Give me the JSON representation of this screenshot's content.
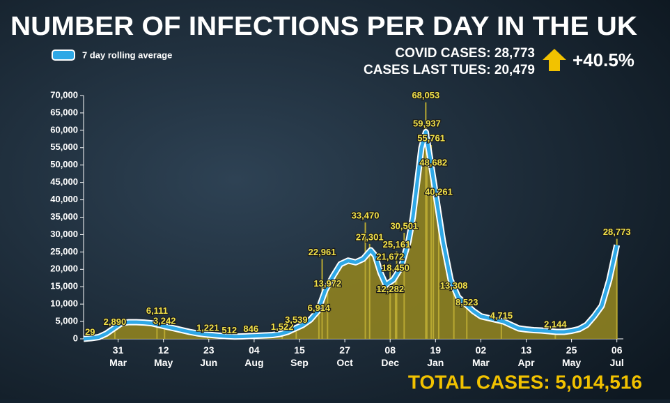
{
  "chart_data": {
    "type": "area-line",
    "title": "NUMBER OF INFECTIONS PER DAY IN THE UK",
    "stats": {
      "covid_cases": "COVID CASES: 28,773",
      "last_tues": "CASES LAST TUES: 20,479",
      "change": "+40.5%",
      "total": "TOTAL CASES: 5,014,516"
    },
    "series": [
      {
        "name": "7 day rolling average",
        "color": "#2fa8e6",
        "fill": "#8f8220",
        "x": [
          0,
          7,
          14,
          21,
          28,
          35,
          42,
          49,
          56,
          63,
          70,
          77,
          84,
          91,
          98,
          105,
          112,
          119,
          126,
          133,
          140,
          147,
          154,
          161,
          168,
          175,
          182,
          189,
          196,
          203,
          210,
          217,
          224,
          231,
          238,
          245,
          252,
          259,
          266,
          270,
          275,
          280,
          287,
          294,
          301,
          305,
          309,
          313,
          317,
          321,
          326,
          333,
          340,
          347,
          354,
          361,
          368,
          375,
          382,
          389,
          396,
          403,
          410,
          417,
          424,
          431,
          438,
          445,
          452,
          459,
          466,
          473,
          480,
          487,
          494
        ],
        "values": [
          0,
          200,
          500,
          1500,
          3000,
          4500,
          4800,
          4800,
          4700,
          4500,
          4000,
          3500,
          3000,
          2500,
          2000,
          1600,
          1300,
          1100,
          900,
          750,
          650,
          700,
          800,
          900,
          1000,
          1100,
          1400,
          2000,
          3000,
          4000,
          5500,
          8000,
          14000,
          18000,
          21500,
          22500,
          22000,
          23000,
          25500,
          24000,
          19000,
          15500,
          17000,
          20500,
          28000,
          35000,
          45000,
          55000,
          59500,
          52000,
          42000,
          28000,
          17000,
          12000,
          10000,
          8000,
          6500,
          6000,
          5500,
          5000,
          4000,
          3000,
          2700,
          2500,
          2400,
          2200,
          2000,
          2000,
          2300,
          2800,
          4000,
          6500,
          9500,
          17000,
          27000
        ]
      }
    ],
    "annotations": [
      {
        "x": 6,
        "value": 29,
        "label": "29"
      },
      {
        "x": 29,
        "value": 2890,
        "label": "2,890"
      },
      {
        "x": 68,
        "value": 6111,
        "label": "6,111"
      },
      {
        "x": 75,
        "value": 3242,
        "label": "3,242"
      },
      {
        "x": 115,
        "value": 1221,
        "label": "1,221"
      },
      {
        "x": 135,
        "value": 512,
        "label": "512"
      },
      {
        "x": 155,
        "value": 846,
        "label": "846"
      },
      {
        "x": 184,
        "value": 1522,
        "label": "1,522"
      },
      {
        "x": 197,
        "value": 3539,
        "label": "3,539"
      },
      {
        "x": 218,
        "value": 6914,
        "label": "6,914"
      },
      {
        "x": 226,
        "value": 13972,
        "label": "13,972"
      },
      {
        "x": 221,
        "value": 22961,
        "label": "22,961"
      },
      {
        "x": 265,
        "value": 27301,
        "label": "27,301"
      },
      {
        "x": 261,
        "value": 33470,
        "label": "33,470"
      },
      {
        "x": 284,
        "value": 12282,
        "label": "12,282"
      },
      {
        "x": 284,
        "value": 21672,
        "label": "21,672"
      },
      {
        "x": 289,
        "value": 18450,
        "label": "18,450"
      },
      {
        "x": 290,
        "value": 25161,
        "label": "25,161"
      },
      {
        "x": 297,
        "value": 30501,
        "label": "30,501"
      },
      {
        "x": 317,
        "value": 68053,
        "label": "68,053"
      },
      {
        "x": 318,
        "value": 59937,
        "label": "59,937"
      },
      {
        "x": 322,
        "value": 55761,
        "label": "55,761"
      },
      {
        "x": 324,
        "value": 48682,
        "label": "48,682"
      },
      {
        "x": 329,
        "value": 40261,
        "label": "40,261"
      },
      {
        "x": 343,
        "value": 13308,
        "label": "13,308"
      },
      {
        "x": 355,
        "value": 8523,
        "label": "8,523"
      },
      {
        "x": 387,
        "value": 4715,
        "label": "4,715"
      },
      {
        "x": 437,
        "value": 2144,
        "label": "2,144"
      },
      {
        "x": 494,
        "value": 28773,
        "label": "28,773"
      }
    ],
    "xlim": [
      0,
      500
    ],
    "xticks": [
      {
        "value": 32,
        "label": "31 Mar"
      },
      {
        "value": 74,
        "label": "12 May"
      },
      {
        "value": 116,
        "label": "23 Jun"
      },
      {
        "value": 158,
        "label": "04 Aug"
      },
      {
        "value": 200,
        "label": "15 Sep"
      },
      {
        "value": 242,
        "label": "27 Oct"
      },
      {
        "value": 284,
        "label": "08 Dec"
      },
      {
        "value": 326,
        "label": "19 Jan"
      },
      {
        "value": 368,
        "label": "02 Mar"
      },
      {
        "value": 410,
        "label": "13 Apr"
      },
      {
        "value": 452,
        "label": "25 May"
      },
      {
        "value": 494,
        "label": "06 Jul"
      }
    ],
    "ylim": [
      0,
      70000
    ],
    "yticks": [
      0,
      {
        "value": 5000,
        "label": "5,000"
      },
      {
        "value": 10000,
        "label": "10,000"
      },
      {
        "value": 15000,
        "label": "15,000"
      },
      {
        "value": 20000,
        "label": "20,000"
      },
      {
        "value": 25000,
        "label": "25,000"
      },
      {
        "value": 30000,
        "label": "30,000"
      },
      {
        "value": 35000,
        "label": "35,000"
      },
      {
        "value": 40000,
        "label": "40,000"
      },
      {
        "value": 45000,
        "label": "45,000"
      },
      {
        "value": 50000,
        "label": "50,000"
      },
      {
        "value": 55000,
        "label": "55,000"
      },
      {
        "value": 60000,
        "label": "60,000"
      },
      {
        "value": 65000,
        "label": "65,000"
      },
      {
        "value": 70000,
        "label": "70,000"
      }
    ]
  }
}
